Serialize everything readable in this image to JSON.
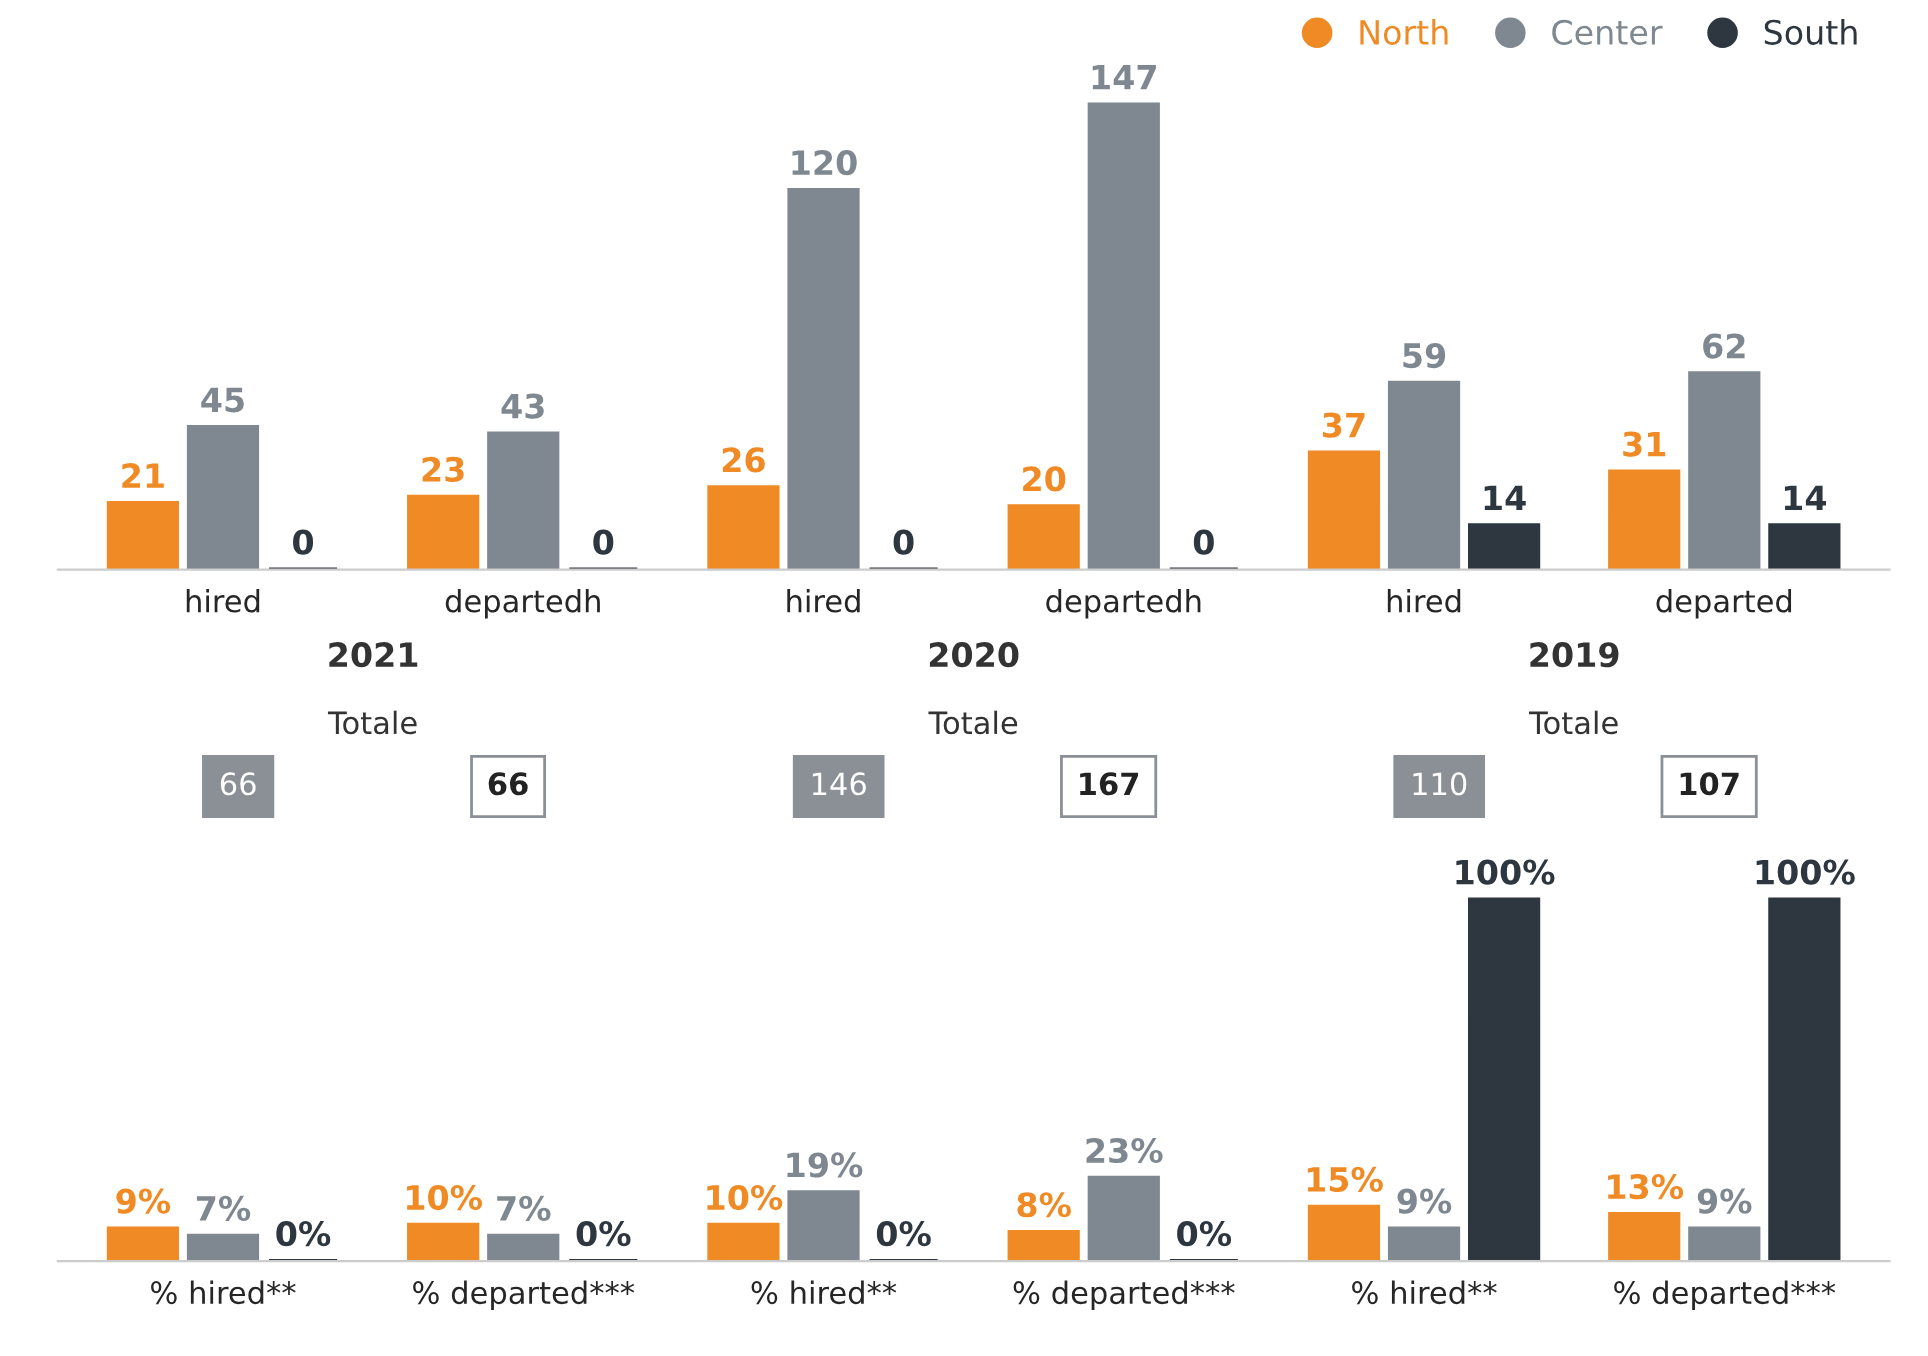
{
  "chart_data": [
    {
      "type": "bar",
      "categories": [
        "hired",
        "departedh",
        "hired",
        "departedh",
        "hired",
        "departed"
      ],
      "tick_labels": "x",
      "legend": "top right",
      "data_labels": true,
      "series": [
        {
          "name": "North",
          "color": "#f08a24",
          "values": [
            21,
            23,
            26,
            20,
            37,
            31
          ]
        },
        {
          "name": "Center",
          "color": "#7f8890",
          "values": [
            45,
            43,
            120,
            147,
            59,
            62
          ]
        },
        {
          "name": "South",
          "color": "#2e3640",
          "values": [
            0,
            0,
            0,
            0,
            14,
            14
          ]
        }
      ],
      "annotations": [
        "2021",
        "Totale",
        "66",
        "66",
        "2020",
        "Totale",
        "146",
        "167",
        "2019",
        "Totale",
        "110",
        "107"
      ]
    },
    {
      "type": "bar",
      "categories": [
        "% hired**",
        "% departed***",
        "% hired**",
        "% departed***",
        "% hired**",
        "% departed***"
      ],
      "tick_labels": "x",
      "series": [
        {
          "color": "#f08a24",
          "values": [
            9,
            10,
            10,
            8,
            15,
            13
          ],
          "value_labels": [
            "9%",
            "10%",
            "10%",
            "8%",
            "15%",
            "13%"
          ]
        },
        {
          "color": "#7f8890",
          "values": [
            7,
            7,
            19,
            23,
            9,
            9
          ],
          "value_labels": [
            "7%",
            "7%",
            "19%",
            "23%",
            "9%",
            "9%"
          ]
        },
        {
          "color": "#2e3640",
          "values": [
            0,
            0,
            0,
            0,
            100,
            100
          ],
          "value_labels": [
            "0%",
            "0%",
            "0%",
            "0%",
            "100%",
            "100%"
          ]
        }
      ]
    }
  ]
}
